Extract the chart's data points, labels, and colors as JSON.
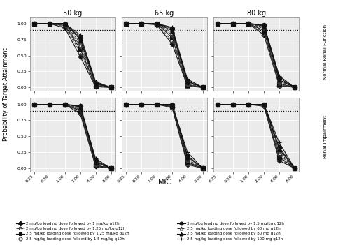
{
  "mic_values": [
    0.25,
    0.5,
    1.0,
    2.0,
    4.0,
    8.0
  ],
  "mic_labels": [
    "0.25",
    "0.50",
    "1.00",
    "2.00",
    "4.00",
    "8.00"
  ],
  "hline_y": 0.9,
  "col_titles": [
    "50 kg",
    "65 kg",
    "80 kg"
  ],
  "row_titles": [
    "Normal Renal Function",
    "Renal Impairment"
  ],
  "panel_bg": "#EBEBEB",
  "strip_bg": "#D0D0D0",
  "series": [
    {
      "label": "2 mg/kg loading dose followed by 1 mg/kg q12h",
      "marker": "D",
      "linestyle": "-",
      "color": "#111111",
      "fillstyle": "full",
      "markersize": 3.5,
      "normal": [
        [
          1.0,
          1.0,
          0.93,
          0.48,
          0.01,
          0.0
        ],
        [
          1.0,
          1.0,
          0.98,
          0.68,
          0.02,
          0.0
        ],
        [
          1.0,
          1.0,
          1.0,
          0.82,
          0.03,
          0.0
        ]
      ],
      "impaired": [
        [
          1.0,
          1.0,
          1.0,
          0.85,
          0.03,
          0.0
        ],
        [
          1.0,
          1.0,
          1.0,
          0.95,
          0.06,
          0.0
        ],
        [
          1.0,
          1.0,
          1.0,
          0.97,
          0.12,
          0.0
        ]
      ]
    },
    {
      "label": "2 mg/kg loading dose followed by 1.25 mg/kg q12h",
      "marker": "s",
      "linestyle": "--",
      "color": "#444444",
      "fillstyle": "none",
      "markersize": 4,
      "normal": [
        [
          1.0,
          1.0,
          0.95,
          0.55,
          0.02,
          0.0
        ],
        [
          1.0,
          1.0,
          0.99,
          0.73,
          0.03,
          0.0
        ],
        [
          1.0,
          1.0,
          1.0,
          0.86,
          0.04,
          0.0
        ]
      ],
      "impaired": [
        [
          1.0,
          1.0,
          1.0,
          0.88,
          0.04,
          0.0
        ],
        [
          1.0,
          1.0,
          1.0,
          0.96,
          0.08,
          0.0
        ],
        [
          1.0,
          1.0,
          1.0,
          0.98,
          0.15,
          0.0
        ]
      ]
    },
    {
      "label": "2.5 mg/kg loading dose followed by 1.25 mg/kg q12h",
      "marker": "s",
      "linestyle": "-",
      "color": "#111111",
      "fillstyle": "full",
      "markersize": 4,
      "normal": [
        [
          1.0,
          1.0,
          0.97,
          0.6,
          0.03,
          0.0
        ],
        [
          1.0,
          1.0,
          1.0,
          0.78,
          0.04,
          0.0
        ],
        [
          1.0,
          1.0,
          1.0,
          0.89,
          0.06,
          0.0
        ]
      ],
      "impaired": [
        [
          1.0,
          1.0,
          1.0,
          0.9,
          0.05,
          0.0
        ],
        [
          1.0,
          1.0,
          1.0,
          0.97,
          0.1,
          0.0
        ],
        [
          1.0,
          1.0,
          1.0,
          0.99,
          0.18,
          0.0
        ]
      ]
    },
    {
      "label": "2.5 mg/kg loading dose followd by 1.5 mg/kg q12h",
      "marker": "o",
      "linestyle": "--",
      "color": "#444444",
      "fillstyle": "none",
      "markersize": 3.5,
      "normal": [
        [
          1.0,
          1.0,
          0.98,
          0.65,
          0.04,
          0.0
        ],
        [
          1.0,
          1.0,
          1.0,
          0.82,
          0.05,
          0.0
        ],
        [
          1.0,
          1.0,
          1.0,
          0.92,
          0.07,
          0.0
        ]
      ],
      "impaired": [
        [
          1.0,
          1.0,
          1.0,
          0.92,
          0.06,
          0.0
        ],
        [
          1.0,
          1.0,
          1.0,
          0.98,
          0.12,
          0.0
        ],
        [
          1.0,
          1.0,
          1.0,
          0.99,
          0.22,
          0.0
        ]
      ]
    },
    {
      "label": "3 mg/kg loading dose followed by 1.5 mg/kg q12h",
      "marker": "o",
      "linestyle": "-",
      "color": "#111111",
      "fillstyle": "full",
      "markersize": 4.5,
      "normal": [
        [
          1.0,
          1.0,
          1.0,
          0.78,
          0.07,
          0.0
        ],
        [
          1.0,
          1.0,
          1.0,
          0.92,
          0.1,
          0.0
        ],
        [
          1.0,
          1.0,
          1.0,
          0.97,
          0.15,
          0.0
        ]
      ],
      "impaired": [
        [
          1.0,
          1.0,
          1.0,
          0.97,
          0.12,
          0.0
        ],
        [
          1.0,
          1.0,
          1.0,
          1.0,
          0.2,
          0.0
        ],
        [
          1.0,
          1.0,
          1.0,
          1.0,
          0.33,
          0.0
        ]
      ]
    },
    {
      "label": "2.5 mg/kg loading dose followed by 60 mg q12h",
      "marker": "^",
      "linestyle": "--",
      "color": "#333333",
      "fillstyle": "none",
      "markersize": 4,
      "normal": [
        [
          1.0,
          1.0,
          0.99,
          0.7,
          0.05,
          0.0
        ],
        [
          1.0,
          1.0,
          1.0,
          0.86,
          0.07,
          0.0
        ],
        [
          1.0,
          1.0,
          1.0,
          0.94,
          0.1,
          0.0
        ]
      ],
      "impaired": [
        [
          1.0,
          1.0,
          1.0,
          0.94,
          0.08,
          0.0
        ],
        [
          1.0,
          1.0,
          1.0,
          0.99,
          0.14,
          0.0
        ],
        [
          1.0,
          1.0,
          1.0,
          1.0,
          0.26,
          0.0
        ]
      ]
    },
    {
      "label": "2.5 mg/kg loading dose followed by 80 mg q12h",
      "marker": "^",
      "linestyle": "-",
      "color": "#111111",
      "fillstyle": "full",
      "markersize": 4,
      "normal": [
        [
          1.0,
          1.0,
          1.0,
          0.75,
          0.06,
          0.0
        ],
        [
          1.0,
          1.0,
          1.0,
          0.89,
          0.09,
          0.0
        ],
        [
          1.0,
          1.0,
          1.0,
          0.96,
          0.12,
          0.0
        ]
      ],
      "impaired": [
        [
          1.0,
          1.0,
          1.0,
          0.96,
          0.1,
          0.0
        ],
        [
          1.0,
          1.0,
          1.0,
          1.0,
          0.18,
          0.0
        ],
        [
          1.0,
          1.0,
          1.0,
          1.0,
          0.3,
          0.0
        ]
      ]
    },
    {
      "label": "2.5 mg/kg loading dose followed by 100 mg q12h",
      "marker": "+",
      "linestyle": "-",
      "color": "#111111",
      "fillstyle": "full",
      "markersize": 5,
      "normal": [
        [
          1.0,
          1.0,
          1.0,
          0.82,
          0.09,
          0.0
        ],
        [
          1.0,
          1.0,
          1.0,
          0.94,
          0.13,
          0.0
        ],
        [
          1.0,
          1.0,
          1.0,
          0.98,
          0.18,
          0.0
        ]
      ],
      "impaired": [
        [
          1.0,
          1.0,
          1.0,
          0.98,
          0.15,
          0.0
        ],
        [
          1.0,
          1.0,
          1.0,
          1.0,
          0.25,
          0.0
        ],
        [
          1.0,
          1.0,
          1.0,
          1.0,
          0.4,
          0.0
        ]
      ]
    }
  ],
  "legend_entries": [
    {
      "label": "2 mg/kg loading dose followed by 1 mg/kg q12h",
      "marker": "D",
      "linestyle": "-",
      "fillstyle": "full",
      "color": "#111111"
    },
    {
      "label": "2 mg/kg loading dose followed by 1.25 mg/kg q12h",
      "marker": "s",
      "linestyle": "--",
      "fillstyle": "none",
      "color": "#444444"
    },
    {
      "label": "2.5 mg/kg loading dose followed by 1.25 mg/kg q12h",
      "marker": "s",
      "linestyle": "-",
      "fillstyle": "full",
      "color": "#111111"
    },
    {
      "label": "2.5 mg/kg loading dose followd by 1.5 mg/kg q12h",
      "marker": "o",
      "linestyle": "--",
      "fillstyle": "none",
      "color": "#444444"
    },
    {
      "label": "3 mg/kg loading dose followed by 1.5 mg/kg q12h",
      "marker": "o",
      "linestyle": "-",
      "fillstyle": "full",
      "color": "#111111"
    },
    {
      "label": "2.5 mg/kg loading dose followed by 60 mg q12h",
      "marker": "^",
      "linestyle": "--",
      "fillstyle": "none",
      "color": "#333333"
    },
    {
      "label": "2.5 mg/kg loading dose followed by 80 mg q12h",
      "marker": "^",
      "linestyle": "-",
      "fillstyle": "full",
      "color": "#111111"
    },
    {
      "label": "2.5 mg/kg loading dose followed by 100 mg q12h",
      "marker": "+",
      "linestyle": "-",
      "fillstyle": "full",
      "color": "#111111"
    }
  ]
}
